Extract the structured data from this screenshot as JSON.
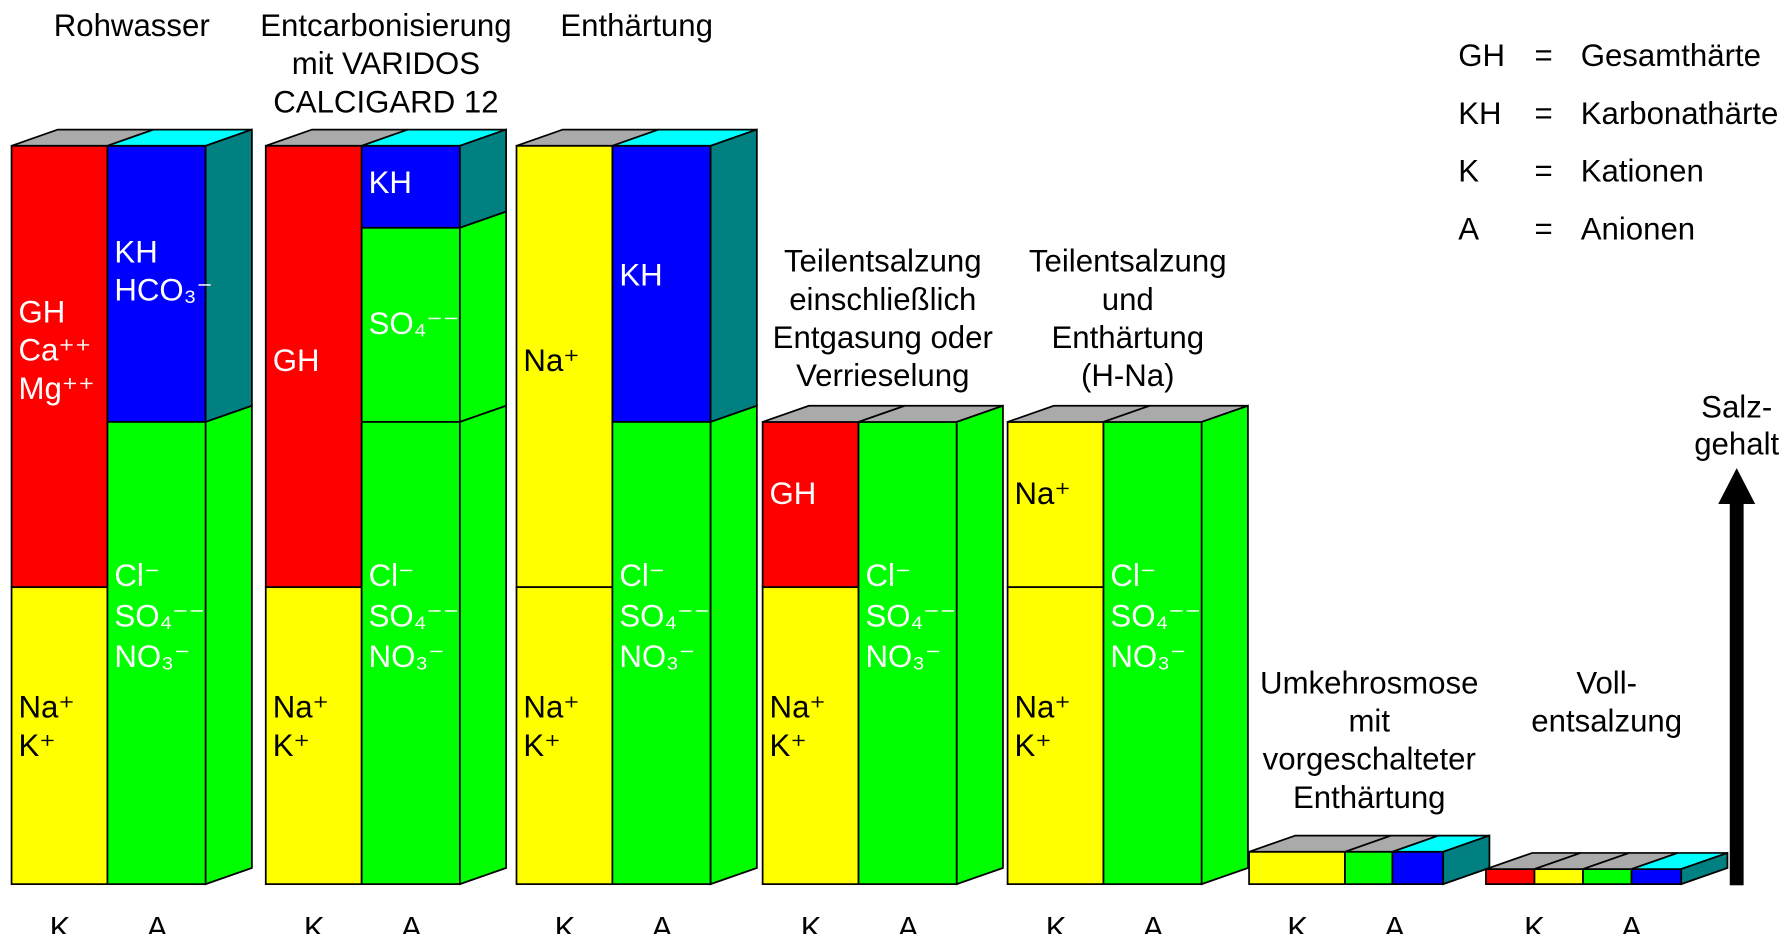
{
  "columns": [
    {
      "title": [
        "Rohwasser"
      ],
      "labels": [
        [
          "GH",
          "Ca⁺⁺",
          "Mg⁺⁺"
        ],
        [
          "Na⁺",
          "K⁺"
        ],
        [
          "KH",
          "HCO₃⁻"
        ],
        [
          "Cl⁻",
          "SO₄⁻⁻",
          "NO₃⁻"
        ]
      ]
    },
    {
      "title": [
        "Entcarbonisierung",
        "mit  VARIDOS",
        "CALCIGARD  12"
      ],
      "labels": [
        [
          "GH"
        ],
        [
          "Na⁺",
          "K⁺"
        ],
        [
          "KH"
        ],
        [
          "SO₄⁻⁻"
        ],
        [
          "Cl⁻",
          "SO₄⁻⁻",
          "NO₃⁻"
        ]
      ]
    },
    {
      "title": [
        "Enthärtung"
      ],
      "labels": [
        [
          "Na⁺"
        ],
        [
          "Na⁺",
          "K⁺"
        ],
        [
          "KH"
        ],
        [
          "Cl⁻",
          "SO₄⁻⁻",
          "NO₃⁻"
        ]
      ]
    },
    {
      "title": [
        "Teilentsalzung",
        "einschließlich",
        "Entgasung  oder",
        "Verrieselung"
      ],
      "labels": [
        [
          "GH"
        ],
        [
          "Na⁺",
          "K⁺"
        ],
        [
          "Cl⁻",
          "SO₄⁻⁻",
          "NO₃⁻"
        ]
      ]
    },
    {
      "title": [
        "Teilentsalzung",
        "und",
        "Enthärtung",
        "(H-Na)"
      ],
      "labels": [
        [
          "Na⁺"
        ],
        [
          "Na⁺",
          "K⁺"
        ],
        [
          "Cl⁻",
          "SO₄⁻⁻",
          "NO₃⁻"
        ]
      ]
    },
    {
      "title": [
        "Umkehrosmose",
        "mit",
        "vorgeschalteter",
        "Enthärtung"
      ]
    },
    {
      "title": [
        "Voll-",
        "entsalzung"
      ]
    }
  ],
  "k_label": "K",
  "a_label": "A",
  "legend": [
    {
      "abbr": "GH",
      "eq": "=",
      "text": "Gesamthärte"
    },
    {
      "abbr": "KH",
      "eq": "=",
      "text": "Karbonathärte"
    },
    {
      "abbr": "K",
      "eq": "=",
      "text": "Kationen"
    },
    {
      "abbr": "A",
      "eq": "=",
      "text": "Anionen"
    }
  ],
  "arrow_label": [
    "Salz-",
    "gehalt"
  ]
}
